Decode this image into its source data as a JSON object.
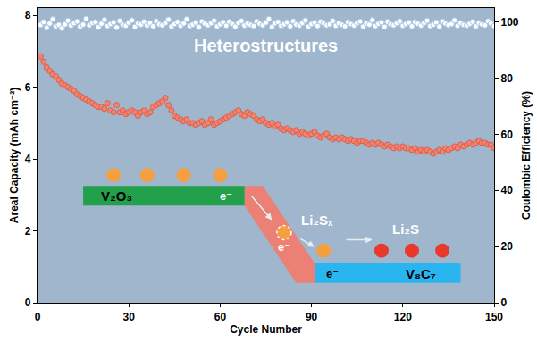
{
  "chart_data": {
    "type": "scatter",
    "x_label": "Cycle Number",
    "y_label": "Areal Capacity (mAh cm⁻²)",
    "y2_label": "Coulombic Efficiency (%)",
    "annotations": [
      "Heterostructures",
      "V₂O₃",
      "e⁻",
      "Li₂Sₓ",
      "e⁻",
      "e⁻",
      "Li₂S",
      "V₈C₇"
    ],
    "xlim": [
      0,
      150
    ],
    "xticks": [
      0,
      30,
      60,
      90,
      120,
      150
    ],
    "ylim": [
      0,
      8.2
    ],
    "yticks": [
      0,
      2,
      4,
      6,
      8
    ],
    "y2lim": [
      0,
      105
    ],
    "y2ticks": [
      0,
      20,
      40,
      60,
      80,
      100
    ],
    "grid": false,
    "x": [
      1,
      2,
      3,
      4,
      5,
      6,
      7,
      8,
      9,
      10,
      11,
      12,
      13,
      14,
      15,
      16,
      17,
      18,
      19,
      20,
      21,
      22,
      23,
      24,
      25,
      26,
      27,
      28,
      29,
      30,
      31,
      32,
      33,
      34,
      35,
      36,
      37,
      38,
      39,
      40,
      41,
      42,
      43,
      44,
      45,
      46,
      47,
      48,
      49,
      50,
      51,
      52,
      53,
      54,
      55,
      56,
      57,
      58,
      59,
      60,
      61,
      62,
      63,
      64,
      65,
      66,
      67,
      68,
      69,
      70,
      71,
      72,
      73,
      74,
      75,
      76,
      77,
      78,
      79,
      80,
      81,
      82,
      83,
      84,
      85,
      86,
      87,
      88,
      89,
      90,
      91,
      92,
      93,
      94,
      95,
      96,
      97,
      98,
      99,
      100,
      101,
      102,
      103,
      104,
      105,
      106,
      107,
      108,
      109,
      110,
      111,
      112,
      113,
      114,
      115,
      116,
      117,
      118,
      119,
      120,
      121,
      122,
      123,
      124,
      125,
      126,
      127,
      128,
      129,
      130,
      131,
      132,
      133,
      134,
      135,
      136,
      137,
      138,
      139,
      140,
      141,
      142,
      143,
      144,
      145,
      146,
      147,
      148,
      149,
      150
    ],
    "series": [
      {
        "color": "#f4826f",
        "marker": "circle",
        "values": [
          6.85,
          6.7,
          6.55,
          6.45,
          6.35,
          6.3,
          6.2,
          6.1,
          6.05,
          6.0,
          5.95,
          5.9,
          5.8,
          5.75,
          5.7,
          5.65,
          5.6,
          5.55,
          5.5,
          5.45,
          5.45,
          5.4,
          5.55,
          5.35,
          5.3,
          5.5,
          5.3,
          5.35,
          5.25,
          5.3,
          5.35,
          5.3,
          5.2,
          5.3,
          5.35,
          5.25,
          5.3,
          5.45,
          5.5,
          5.55,
          5.6,
          5.7,
          5.5,
          5.35,
          5.2,
          5.15,
          5.1,
          5.05,
          5.1,
          5.0,
          5.0,
          4.95,
          5.0,
          5.05,
          4.95,
          5.0,
          5.1,
          4.95,
          5.0,
          5.05,
          5.1,
          5.15,
          5.2,
          5.25,
          5.3,
          5.35,
          5.25,
          5.2,
          5.3,
          5.25,
          5.2,
          5.1,
          5.05,
          5.1,
          5.0,
          4.95,
          5.0,
          4.9,
          4.95,
          4.85,
          4.8,
          4.85,
          4.8,
          4.75,
          4.8,
          4.7,
          4.75,
          4.7,
          4.65,
          4.7,
          4.75,
          4.65,
          4.6,
          4.65,
          4.7,
          4.6,
          4.55,
          4.6,
          4.55,
          4.6,
          4.55,
          4.5,
          4.55,
          4.5,
          4.45,
          4.5,
          4.5,
          4.45,
          4.4,
          4.45,
          4.4,
          4.45,
          4.4,
          4.35,
          4.4,
          4.35,
          4.3,
          4.35,
          4.3,
          4.35,
          4.3,
          4.3,
          4.25,
          4.3,
          4.2,
          4.25,
          4.2,
          4.25,
          4.2,
          4.15,
          4.2,
          4.25,
          4.2,
          4.3,
          4.25,
          4.3,
          4.35,
          4.3,
          4.4,
          4.35,
          4.4,
          4.45,
          4.4,
          4.45,
          4.5,
          4.45,
          4.45,
          4.4,
          4.4,
          4.3
        ]
      },
      {
        "color": "#ffffff",
        "marker": "circle",
        "axis": "y2",
        "values": [
          99,
          100,
          98,
          99.5,
          101,
          98.5,
          99,
          97.8,
          99.2,
          100.5,
          98.8,
          99.6,
          100.2,
          98.4,
          99.1,
          101.2,
          98.9,
          99.7,
          100,
          98.2,
          99.4,
          100.8,
          98.6,
          99.3,
          99.9,
          98.1,
          100.4,
          99,
          98.7,
          99.8,
          100.6,
          98.3,
          99.5,
          99.1,
          100.1,
          98.8,
          99.6,
          98.5,
          100.3,
          99.2,
          98.9,
          99.7,
          100.9,
          98.4,
          99.3,
          100,
          98.7,
          99.5,
          101,
          98.6,
          99.1,
          99.8,
          98.2,
          100.2,
          99.4,
          98.9,
          99.6,
          100.5,
          98.5,
          99.2,
          99.9,
          98.7,
          100.1,
          99.3,
          98.4,
          99.7,
          100.4,
          98.8,
          99.5,
          99,
          98.6,
          100.2,
          99.4,
          98.9,
          99.8,
          101.1,
          98.3,
          99.6,
          100,
          98.7,
          99.2,
          99.9,
          98.5,
          100.3,
          99.1,
          98.8,
          99.7,
          100.6,
          98.4,
          99.3,
          99.8,
          98.6,
          100.1,
          99.5,
          98.9,
          99.2,
          100.4,
          98.7,
          99.6,
          99,
          98.5,
          100,
          99.3,
          98.8,
          99.7,
          100.2,
          98.4,
          99.5,
          99.1,
          100.7,
          98.6,
          99.4,
          99.9,
          98.3,
          100.1,
          99.2,
          98.9,
          99.6,
          100.3,
          98.7,
          99.3,
          99.8,
          98.5,
          100,
          99.4,
          98.8,
          99.7,
          100.5,
          98.6,
          99.1,
          99.9,
          98.4,
          100.2,
          99.5,
          98.9,
          99.3,
          100.6,
          98.7,
          99.6,
          99,
          98.8,
          99.4,
          100.1,
          98.5,
          99.7,
          99.2,
          98.9,
          100.3,
          99.5,
          98.6
        ]
      }
    ]
  }
}
